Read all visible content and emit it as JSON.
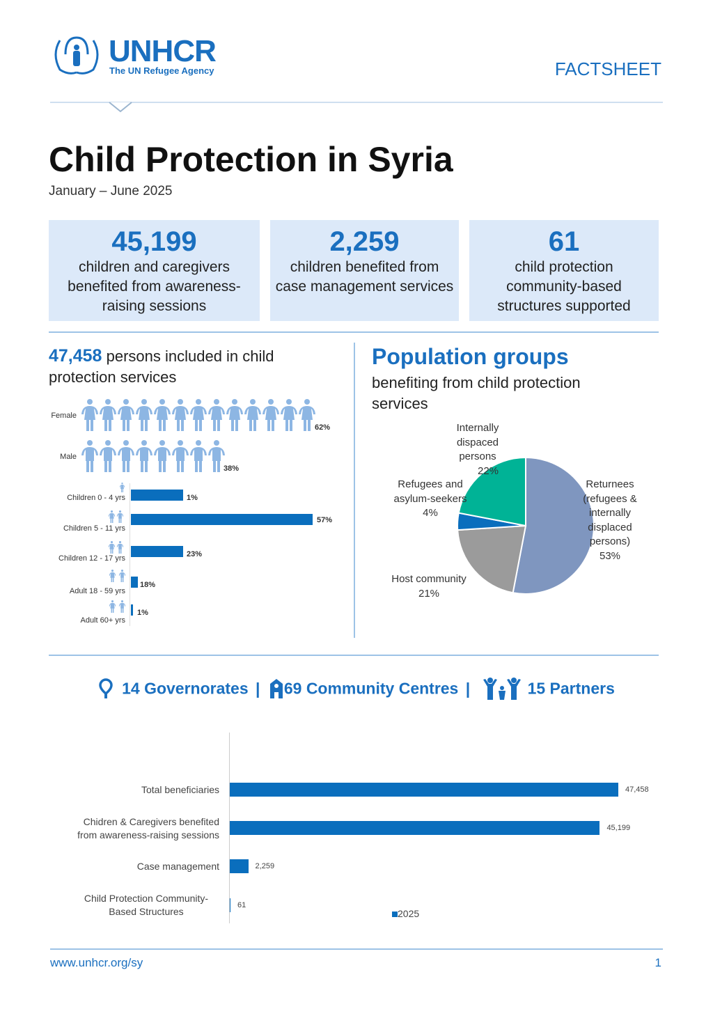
{
  "header": {
    "logo_name": "UNHCR",
    "logo_tagline": "The UN Refugee Agency",
    "doc_type": "FACTSHEET"
  },
  "title": "Child Protection in Syria",
  "period": "January – June 2025",
  "kpis": [
    {
      "value": "45,199",
      "desc": "children and caregivers benefited from awareness-raising sessions"
    },
    {
      "value": "2,259",
      "desc": "children benefited from case management services"
    },
    {
      "value": "61",
      "desc": "child protection community-based structures supported"
    }
  ],
  "persons": {
    "value": "47,458",
    "text": "persons included in child protection services"
  },
  "gender": [
    {
      "label": "Female",
      "pct": "62%",
      "icons": 13
    },
    {
      "label": "Male",
      "pct": "38%",
      "icons": 8
    }
  ],
  "age_groups": [
    {
      "label": "Children 0 - 4 yrs",
      "pct": "1%"
    },
    {
      "label": "Children 5 - 11 yrs",
      "pct": "57%"
    },
    {
      "label": "Children 12 - 17 yrs",
      "pct": "23%"
    },
    {
      "label": "Adult 18 - 59 yrs",
      "pct": "18%"
    },
    {
      "label": "Adult 60+ yrs",
      "pct": "1%"
    }
  ],
  "population": {
    "title": "Population groups",
    "subtitle": "benefiting from child protection services"
  },
  "chart_data": [
    {
      "type": "pie",
      "title": "Population groups",
      "slices": [
        {
          "label": "Returnees (refugees & internally displaced persons)",
          "value": 53,
          "pct": "53%",
          "color": "#7f96bf"
        },
        {
          "label": "Host community",
          "value": 21,
          "pct": "21%",
          "color": "#9b9b9b"
        },
        {
          "label": "Refugees and asylum-seekers",
          "value": 4,
          "pct": "4%",
          "color": "#0a6ebd"
        },
        {
          "label": "Internally dispaced persons",
          "value": 22,
          "pct": "22%",
          "color": "#00b396"
        }
      ]
    },
    {
      "type": "bar",
      "orientation": "horizontal",
      "categories": [
        "Total beneficiaries",
        "Chidren & Caregivers benefited from awareness-raising sessions",
        "Case management",
        "Child Protection Community-Based Structures"
      ],
      "series": [
        {
          "name": "2025",
          "values": [
            47458,
            45199,
            2259,
            61
          ],
          "labels": [
            "47,458",
            "45,199",
            "2,259",
            "61"
          ],
          "color": "#0a6ebd"
        }
      ],
      "xlim": [
        0,
        47458
      ]
    }
  ],
  "stats": [
    {
      "icon": "map-pin-icon",
      "text": "14 Governorates"
    },
    {
      "icon": "community-centre-icon",
      "text": "69 Community Centres"
    },
    {
      "icon": "partners-icon",
      "text": "15 Partners"
    }
  ],
  "stats_separator": "|",
  "footer": {
    "url": "www.unhcr.org/sy",
    "page": "1"
  }
}
